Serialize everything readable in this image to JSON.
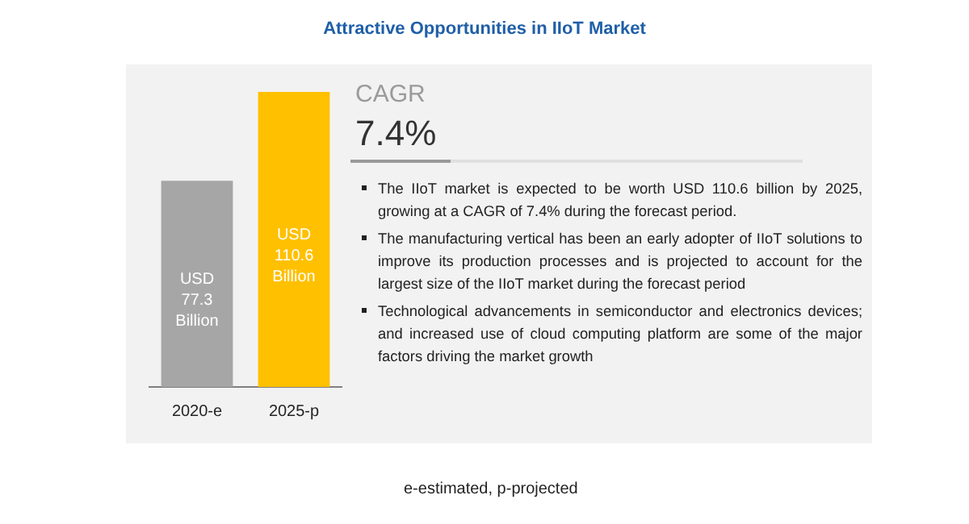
{
  "chart_data": {
    "type": "bar",
    "title": "Attractive Opportunities in IIoT Market",
    "categories": [
      "2020-e",
      "2025-p"
    ],
    "values": [
      77.3,
      110.6
    ],
    "colors": [
      "#a6a6a6",
      "#ffc000"
    ],
    "value_labels": [
      "USD\n77.3\nBillion",
      "USD\n110.6\nBillion"
    ],
    "annotations": [
      "CAGR",
      "7.4%",
      "The IIoT market is expected to be worth USD 110.6 billion by 2025, growing at a CAGR of 7.4% during the forecast period.",
      "The manufacturing vertical has been an early adopter of IIoT solutions to improve its production processes and is projected to account for the largest size of the IIoT market during the forecast period",
      "Technological advancements in semiconductor and electronics devices; and increased use of cloud computing platform are some of the major factors driving the market growth",
      "e-estimated, p-projected"
    ],
    "grid": false,
    "legend": false
  }
}
